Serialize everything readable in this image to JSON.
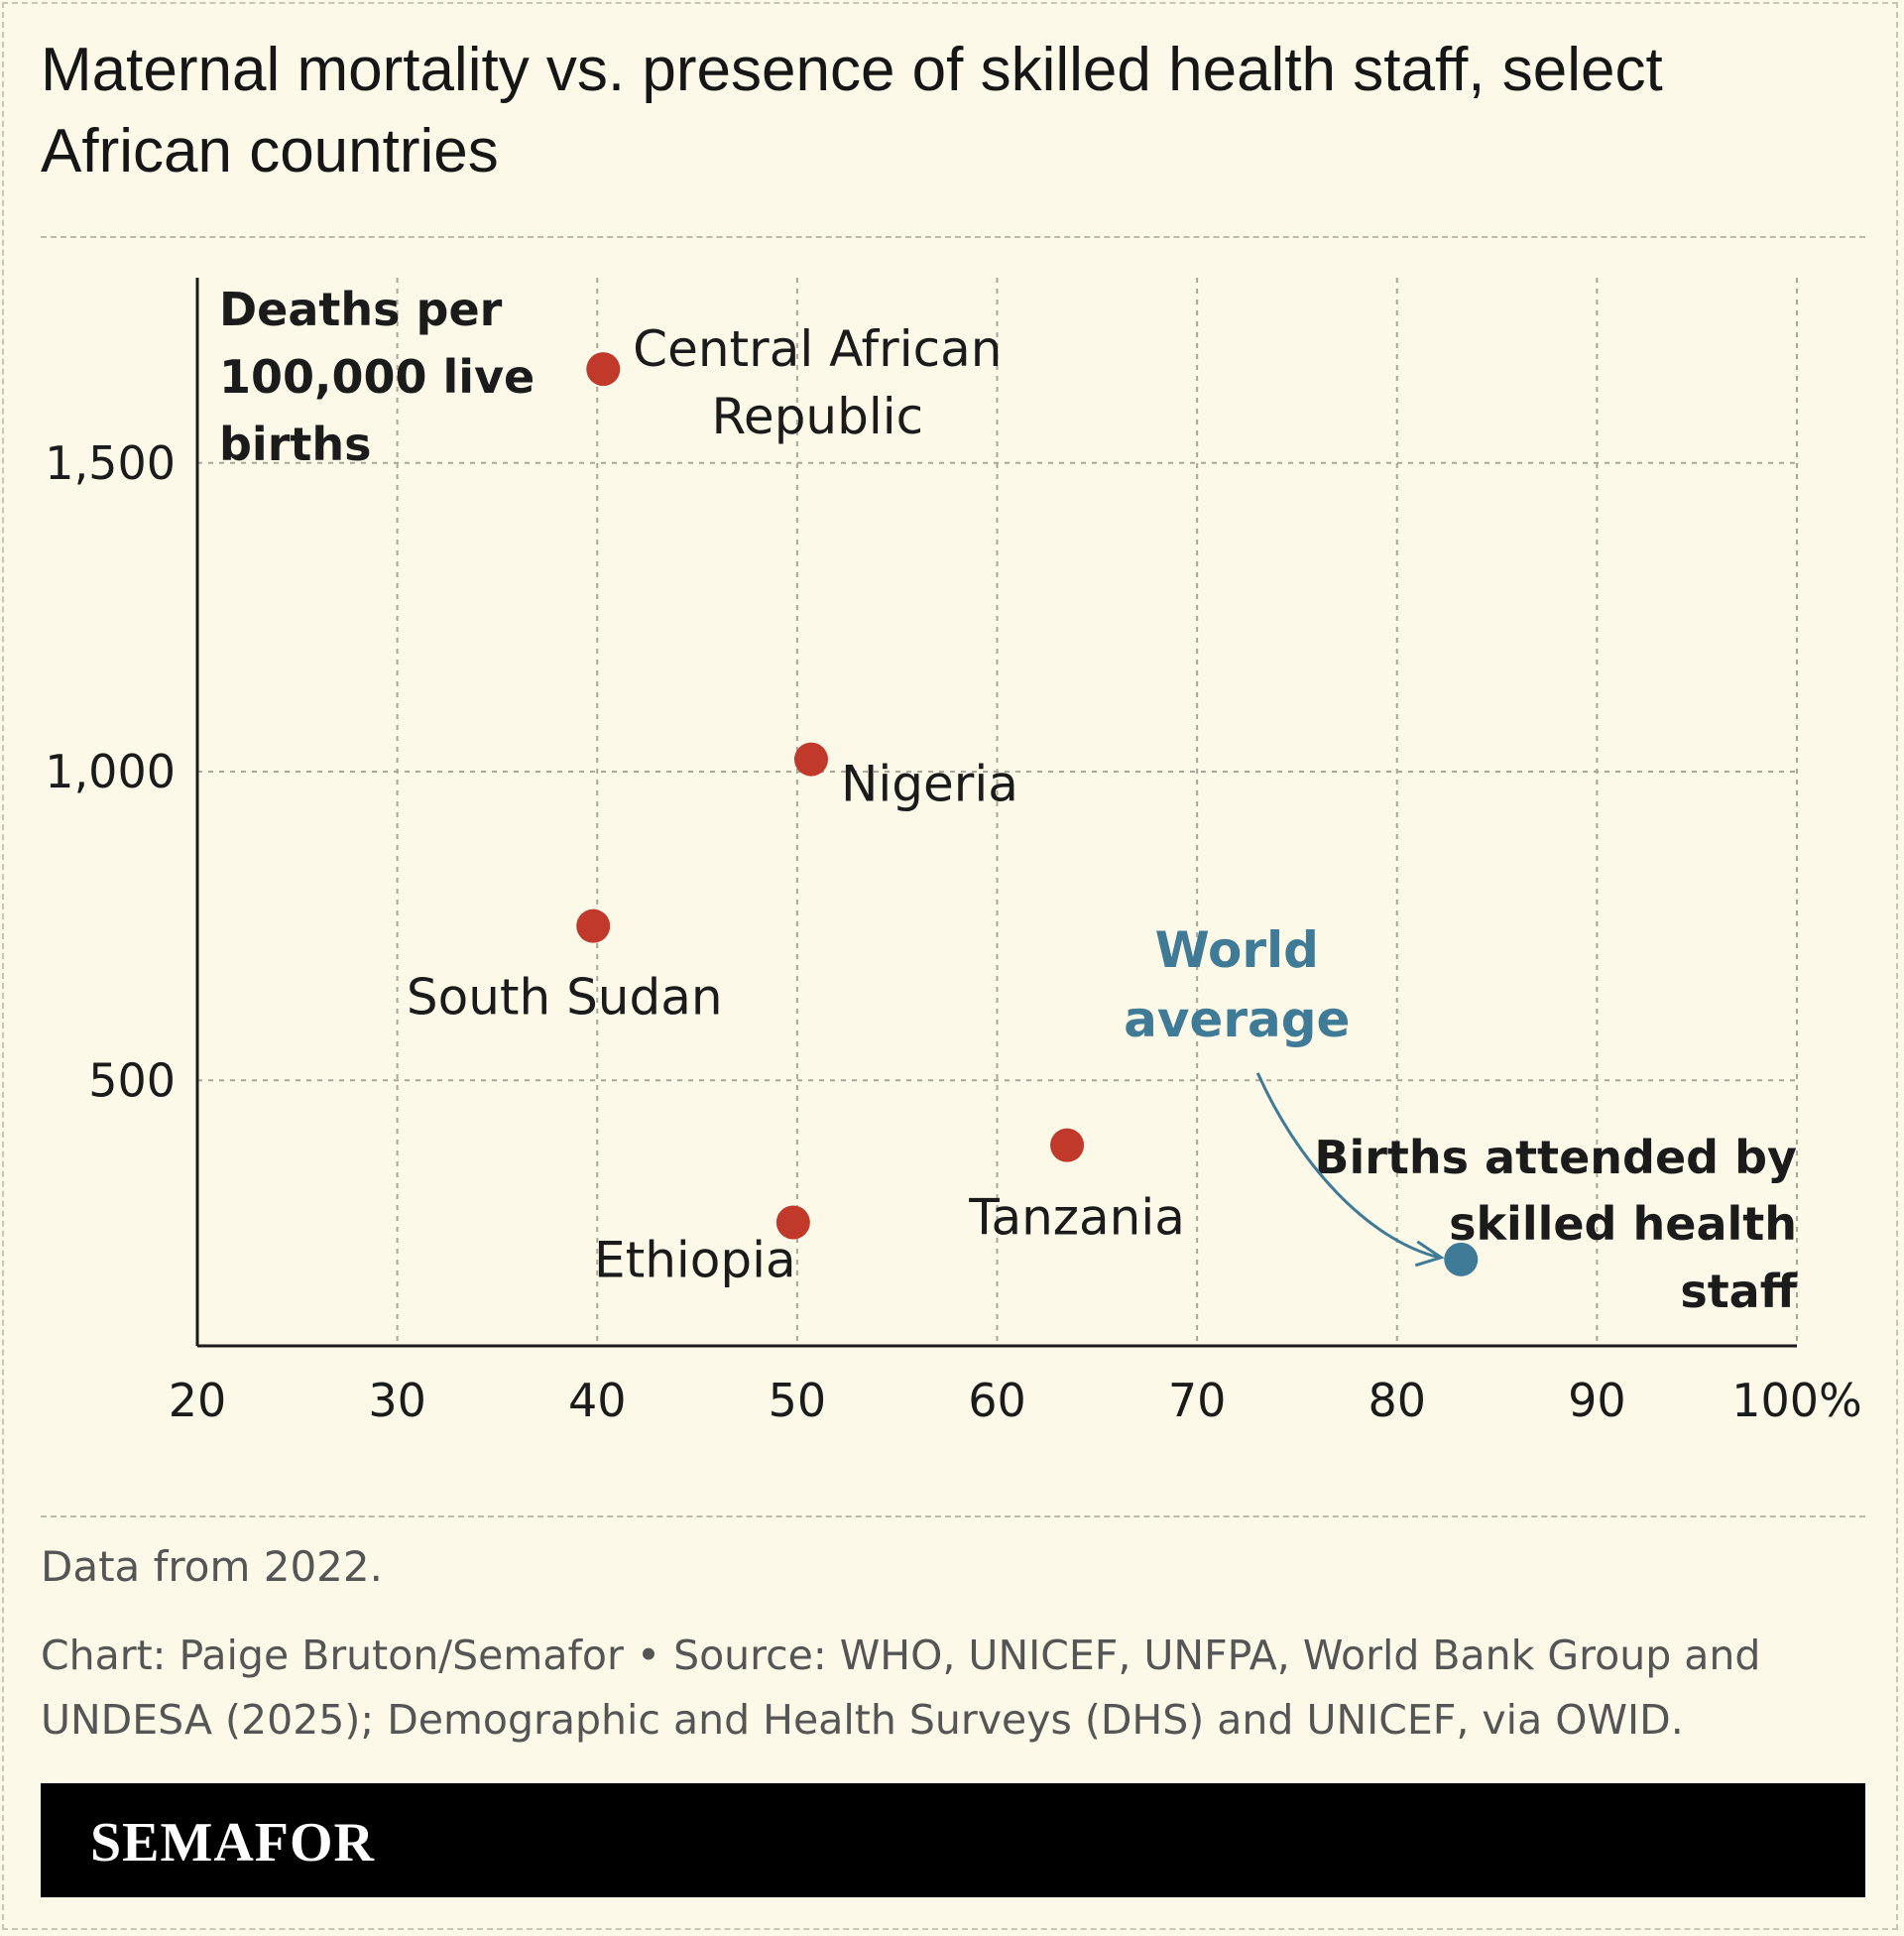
{
  "header": {
    "title": "Maternal mortality vs. presence of skilled health staff, select African countries"
  },
  "chart_data": {
    "type": "scatter",
    "xlabel": "Births attended by skilled health staff",
    "ylabel": "Deaths per 100,000 live births",
    "xlim": [
      20,
      100
    ],
    "ylim": [
      70,
      1800
    ],
    "x_ticks": [
      {
        "value": 20,
        "label": "20"
      },
      {
        "value": 30,
        "label": "30"
      },
      {
        "value": 40,
        "label": "40"
      },
      {
        "value": 50,
        "label": "50"
      },
      {
        "value": 60,
        "label": "60"
      },
      {
        "value": 70,
        "label": "70"
      },
      {
        "value": 80,
        "label": "80"
      },
      {
        "value": 90,
        "label": "90"
      },
      {
        "value": 100,
        "label": "100%"
      }
    ],
    "y_ticks": [
      {
        "value": 500,
        "label": "500"
      },
      {
        "value": 1000,
        "label": "1,000"
      },
      {
        "value": 1500,
        "label": "1,500"
      }
    ],
    "grid": true,
    "points": [
      {
        "label": "Central African Republic",
        "x": 40.3,
        "y": 1652,
        "color": "#c0392b"
      },
      {
        "label": "Nigeria",
        "x": 50.7,
        "y": 1020,
        "color": "#c0392b"
      },
      {
        "label": "South Sudan",
        "x": 39.8,
        "y": 750,
        "color": "#c0392b"
      },
      {
        "label": "Tanzania",
        "x": 63.5,
        "y": 395,
        "color": "#c0392b"
      },
      {
        "label": "Ethiopia",
        "x": 49.8,
        "y": 270,
        "color": "#c0392b"
      },
      {
        "label": "World average",
        "x": 83.2,
        "y": 210,
        "color": "#3f7a96"
      }
    ]
  },
  "footer": {
    "note": "Data from 2022.",
    "credit": "Chart: Paige Bruton/Semafor • Source: WHO, UNICEF, UNFPA, World Bank Group and UNDESA (2025); Demographic and Health Surveys (DHS) and UNICEF, via OWID.",
    "brand": "SEMAFOR"
  },
  "colors": {
    "background": "#fcf9e8",
    "country_point": "#c0392b",
    "world_point": "#3f7a96"
  }
}
